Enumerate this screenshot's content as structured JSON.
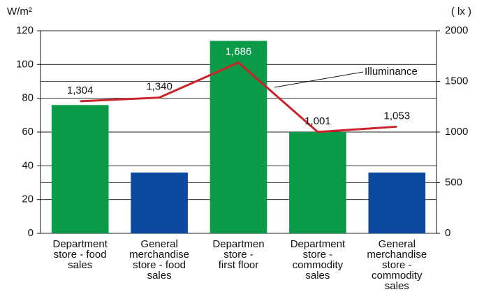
{
  "chart_data": {
    "type": "bar_line",
    "y_unit": "W/m²",
    "y2_unit": "( lx )",
    "categories": [
      "Department\nstore - food\nsales",
      "General\nmerchandise\nstore - food\nsales",
      "Departmen\nstore -\nfirst floor",
      "Department\nstore -\ncommodity\nsales",
      "General\nmerchandise\nstore -\ncommodity\nsales"
    ],
    "series": [
      {
        "type": "bar",
        "colors": [
          "#0a9a48",
          "#0c4aa2",
          "#0a9a48",
          "#0a9a48",
          "#0c4aa2"
        ],
        "values": [
          76,
          36,
          114,
          60,
          36
        ]
      },
      {
        "type": "line",
        "name": "Illuminance",
        "color": "#cc2229",
        "axis": "y2",
        "values": [
          1304,
          1340,
          1686,
          1001,
          1053
        ],
        "value_labels": [
          "1,304",
          "1,340",
          "1,686",
          "1,001",
          "1,053"
        ]
      }
    ],
    "ylim": [
      0,
      120
    ],
    "yticks": [
      0,
      20,
      40,
      60,
      80,
      100,
      120
    ],
    "y2lim": [
      0,
      2000
    ],
    "y2ticks": [
      0,
      500,
      1000,
      1500,
      2000
    ],
    "grid": true
  }
}
